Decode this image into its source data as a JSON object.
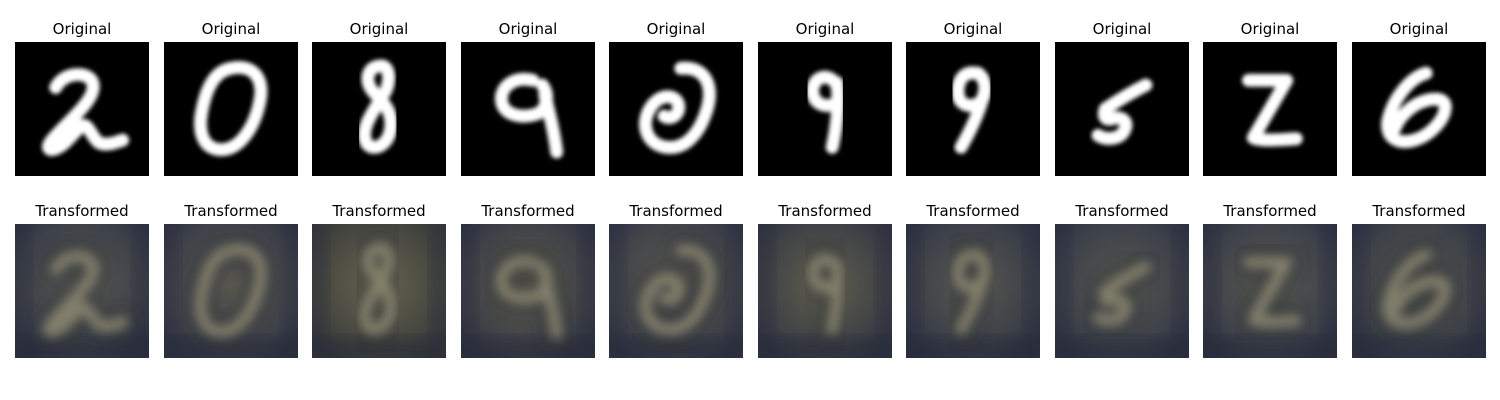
{
  "figure": {
    "orig_title": "Original",
    "trans_title": "Transformed",
    "samples": [
      {
        "digit": "2"
      },
      {
        "digit": "0"
      },
      {
        "digit": "8"
      },
      {
        "digit": "9"
      },
      {
        "digit": "0"
      },
      {
        "digit": "9"
      },
      {
        "digit": "9"
      },
      {
        "digit": "5"
      },
      {
        "digit": "2"
      },
      {
        "digit": "6"
      }
    ]
  }
}
